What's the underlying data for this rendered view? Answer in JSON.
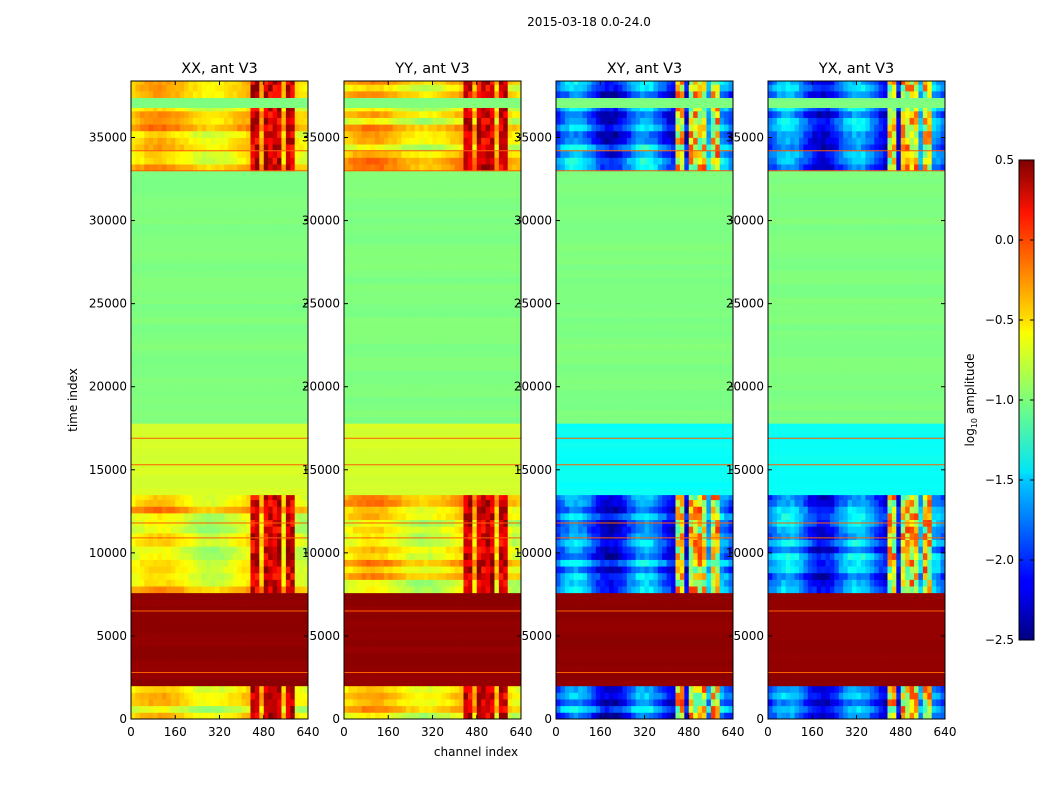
{
  "chart_data": {
    "type": "heatmap",
    "suptitle": "2015-03-18 0.0-24.0",
    "xlabel": "channel index",
    "ylabel": "time index",
    "xlim": [
      0,
      640
    ],
    "ylim": [
      0,
      38400
    ],
    "xticks": [
      0,
      160,
      320,
      480,
      640
    ],
    "yticks": [
      0,
      5000,
      10000,
      15000,
      20000,
      25000,
      30000,
      35000
    ],
    "panels": [
      {
        "title": "XX, ant V3",
        "kind": "parallel"
      },
      {
        "title": "YY, ant V3",
        "kind": "parallel"
      },
      {
        "title": "XY, ant V3",
        "kind": "cross"
      },
      {
        "title": "YX, ant V3",
        "kind": "cross"
      }
    ],
    "colorbar": {
      "label": "log10 amplitude",
      "label_main": "log",
      "label_sub": "10",
      "label_rest": " amplitude",
      "min": -2.5,
      "max": 0.5,
      "ticks": [
        -2.5,
        -2.0,
        -1.5,
        -1.0,
        -0.5,
        0.0,
        0.5
      ],
      "tick_labels": [
        "−2.5",
        "−2.0",
        "−1.5",
        "−1.0",
        "−0.5",
        "0.0",
        "0.5"
      ],
      "colormap": "jet"
    },
    "time_segments": [
      {
        "t0": 0,
        "t1": 2000,
        "parallel": -0.6,
        "cross": -1.9,
        "rfi": true
      },
      {
        "t0": 2000,
        "t1": 7600,
        "parallel": 0.45,
        "cross": 0.45,
        "rfi": false
      },
      {
        "t0": 7600,
        "t1": 13500,
        "parallel": -0.55,
        "cross": -1.85,
        "rfi": true
      },
      {
        "t0": 13500,
        "t1": 17800,
        "parallel": -0.75,
        "cross": -1.35,
        "rfi": false
      },
      {
        "t0": 17800,
        "t1": 33000,
        "parallel": -1.0,
        "cross": -1.0,
        "rfi": false
      },
      {
        "t0": 33000,
        "t1": 36800,
        "parallel": -0.55,
        "cross": -1.85,
        "rfi": true
      },
      {
        "t0": 36800,
        "t1": 37400,
        "parallel": -1.0,
        "cross": -1.0,
        "rfi": false
      },
      {
        "t0": 37400,
        "t1": 38400,
        "parallel": -0.6,
        "cross": -1.9,
        "rfi": true
      }
    ],
    "rfi_channels": [
      [
        420,
        460
      ],
      [
        470,
        500
      ],
      [
        508,
        540
      ],
      [
        555,
        590
      ]
    ],
    "flag_lines": [
      6500,
      2800,
      16900,
      15300,
      33000,
      34200,
      11800,
      10900
    ]
  }
}
